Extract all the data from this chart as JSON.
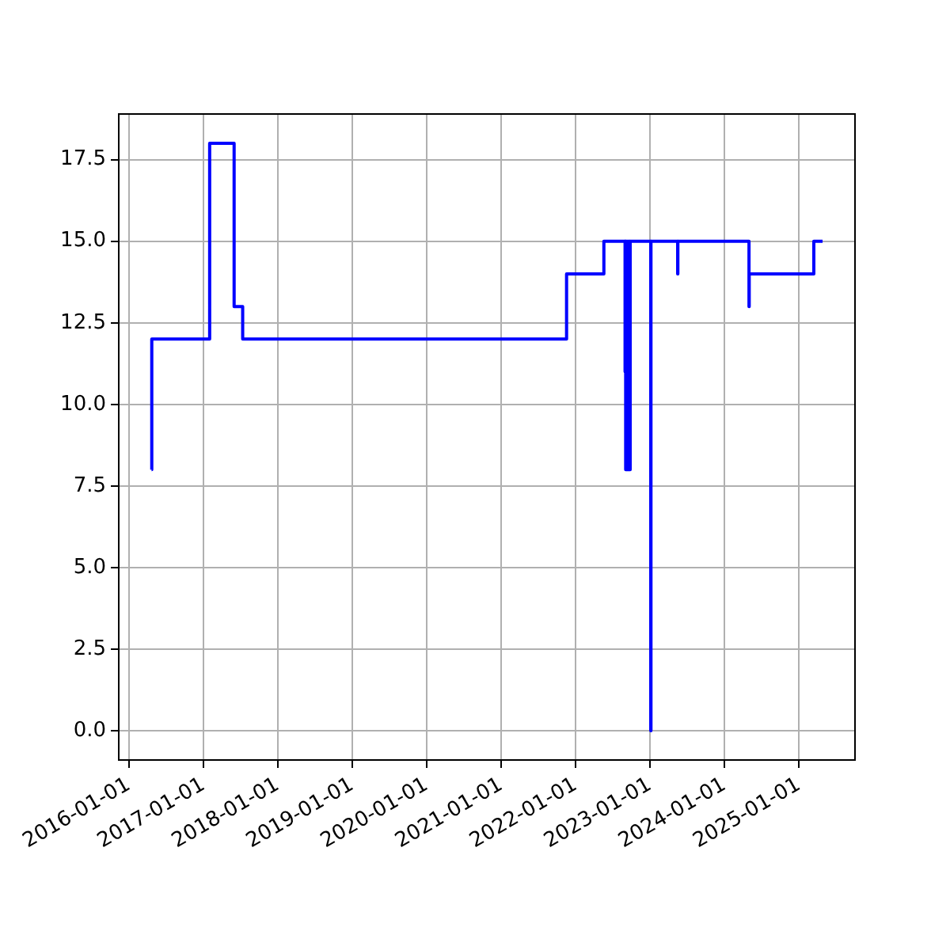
{
  "chart_data": {
    "type": "step",
    "x": [
      "2016-04-22",
      "2016-04-23",
      "2017-02-01",
      "2017-06-01",
      "2017-07-13",
      "2021-11-18",
      "2022-05-20",
      "2022-09-01",
      "2022-09-02",
      "2022-09-04",
      "2022-09-06",
      "2022-09-10",
      "2022-09-13",
      "2022-09-17",
      "2022-09-20",
      "2022-09-24",
      "2022-09-26",
      "2023-01-05",
      "2023-01-06",
      "2023-05-17",
      "2023-05-18",
      "2024-05-01",
      "2024-05-02",
      "2025-03-15",
      "2025-04-27"
    ],
    "series": [
      {
        "color": "#0000ff",
        "values": [
          8,
          12,
          18,
          13,
          12,
          14,
          15,
          11,
          15,
          8,
          15,
          8,
          15,
          8,
          15,
          8,
          15,
          0,
          15,
          14,
          15,
          13,
          14,
          15,
          15
        ]
      }
    ],
    "xlim": [
      "2015-11-13",
      "2025-10-03"
    ],
    "xticks": [
      "2016-01-01",
      "2017-01-01",
      "2018-01-01",
      "2019-01-01",
      "2020-01-01",
      "2021-01-01",
      "2022-01-01",
      "2023-01-01",
      "2024-01-01",
      "2025-01-01"
    ],
    "ylim": [
      -0.9,
      18.9
    ],
    "yticks": [
      {
        "value": 0,
        "label": "0.0"
      },
      2.5,
      {
        "value": 5,
        "label": "5.0"
      },
      7.5,
      {
        "value": 10,
        "label": "10.0"
      },
      12.5,
      {
        "value": 15,
        "label": "15.0"
      },
      17.5
    ],
    "grid": true,
    "legend": false
  }
}
